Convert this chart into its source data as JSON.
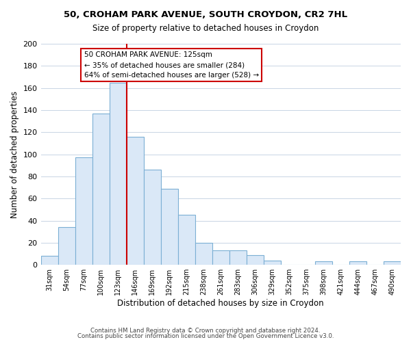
{
  "title1": "50, CROHAM PARK AVENUE, SOUTH CROYDON, CR2 7HL",
  "title2": "Size of property relative to detached houses in Croydon",
  "xlabel": "Distribution of detached houses by size in Croydon",
  "ylabel": "Number of detached properties",
  "bar_labels": [
    "31sqm",
    "54sqm",
    "77sqm",
    "100sqm",
    "123sqm",
    "146sqm",
    "169sqm",
    "192sqm",
    "215sqm",
    "238sqm",
    "261sqm",
    "283sqm",
    "306sqm",
    "329sqm",
    "352sqm",
    "375sqm",
    "398sqm",
    "421sqm",
    "444sqm",
    "467sqm",
    "490sqm"
  ],
  "bar_values": [
    8,
    34,
    97,
    137,
    165,
    116,
    86,
    69,
    45,
    20,
    13,
    13,
    9,
    4,
    0,
    0,
    3,
    0,
    3,
    0,
    3
  ],
  "bar_color": "#dae8f7",
  "bar_edge_color": "#7bafd4",
  "vline_x": 4.5,
  "vline_color": "#cc0000",
  "annotation_title": "50 CROHAM PARK AVENUE: 125sqm",
  "annotation_line1": "← 35% of detached houses are smaller (284)",
  "annotation_line2": "64% of semi-detached houses are larger (528) →",
  "annotation_box_color": "#ffffff",
  "annotation_box_edge": "#cc0000",
  "ylim": [
    0,
    200
  ],
  "yticks": [
    0,
    20,
    40,
    60,
    80,
    100,
    120,
    140,
    160,
    180,
    200
  ],
  "footer1": "Contains HM Land Registry data © Crown copyright and database right 2024.",
  "footer2": "Contains public sector information licensed under the Open Government Licence v3.0.",
  "background_color": "#ffffff",
  "grid_color": "#c8d4e4"
}
